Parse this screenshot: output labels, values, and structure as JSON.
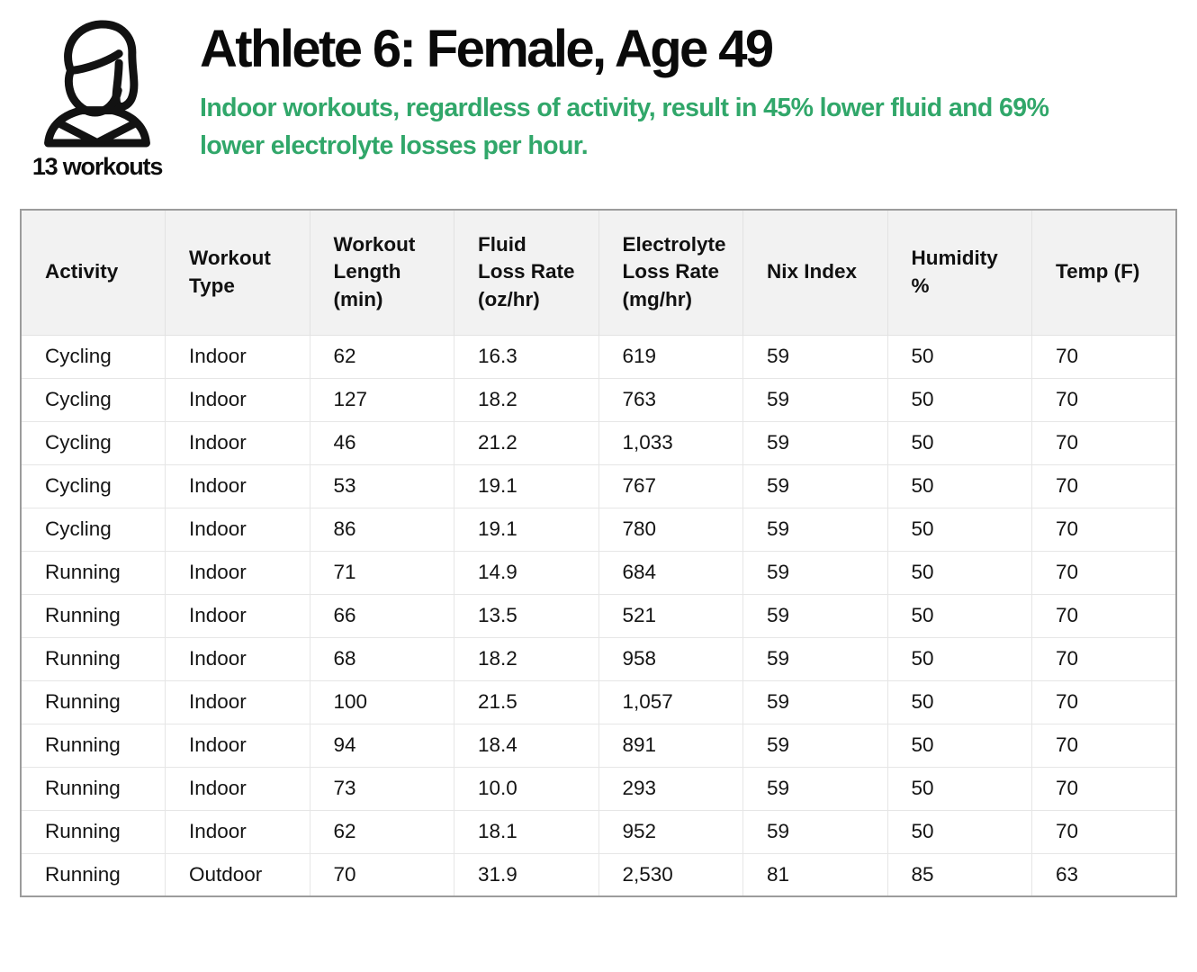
{
  "header": {
    "title": "Athlete 6: Female, Age 49",
    "subtitle": "Indoor workouts, regardless of activity, result in 45% lower fluid and 69% lower electrolyte losses per hour.",
    "workout_count_label": "13 workouts",
    "accent_color": "#31a76a",
    "icon": "female-athlete-line-icon"
  },
  "table": {
    "columns": [
      "Activity",
      "Workout\nType",
      "Workout\nLength\n(min)",
      "Fluid\nLoss Rate\n(oz/hr)",
      "Electrolyte\nLoss Rate\n(mg/hr)",
      "Nix Index",
      "Humidity\n%",
      "Temp (F)"
    ],
    "rows": [
      [
        "Cycling",
        "Indoor",
        "62",
        "16.3",
        "619",
        "59",
        "50",
        "70"
      ],
      [
        "Cycling",
        "Indoor",
        "127",
        "18.2",
        "763",
        "59",
        "50",
        "70"
      ],
      [
        "Cycling",
        "Indoor",
        "46",
        "21.2",
        "1,033",
        "59",
        "50",
        "70"
      ],
      [
        "Cycling",
        "Indoor",
        "53",
        "19.1",
        "767",
        "59",
        "50",
        "70"
      ],
      [
        "Cycling",
        "Indoor",
        "86",
        "19.1",
        "780",
        "59",
        "50",
        "70"
      ],
      [
        "Running",
        "Indoor",
        "71",
        "14.9",
        "684",
        "59",
        "50",
        "70"
      ],
      [
        "Running",
        "Indoor",
        "66",
        "13.5",
        "521",
        "59",
        "50",
        "70"
      ],
      [
        "Running",
        "Indoor",
        "68",
        "18.2",
        "958",
        "59",
        "50",
        "70"
      ],
      [
        "Running",
        "Indoor",
        "100",
        "21.5",
        "1,057",
        "59",
        "50",
        "70"
      ],
      [
        "Running",
        "Indoor",
        "94",
        "18.4",
        "891",
        "59",
        "50",
        "70"
      ],
      [
        "Running",
        "Indoor",
        "73",
        "10.0",
        "293",
        "59",
        "50",
        "70"
      ],
      [
        "Running",
        "Indoor",
        "62",
        "18.1",
        "952",
        "59",
        "50",
        "70"
      ],
      [
        "Running",
        "Outdoor",
        "70",
        "31.9",
        "2,530",
        "81",
        "85",
        "63"
      ]
    ]
  }
}
